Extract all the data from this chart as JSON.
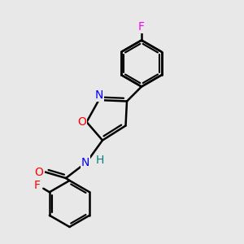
{
  "background_color": "#e8e8e8",
  "bond_color": "#000000",
  "bond_width": 1.8,
  "atom_colors": {
    "F_top": "#ff00ff",
    "F_left": "#ff0000",
    "O": "#ff0000",
    "N": "#0000ff",
    "H": "#008080",
    "C": "#000000"
  },
  "font_size": 10,
  "figsize": [
    3.0,
    3.0
  ],
  "dpi": 100
}
